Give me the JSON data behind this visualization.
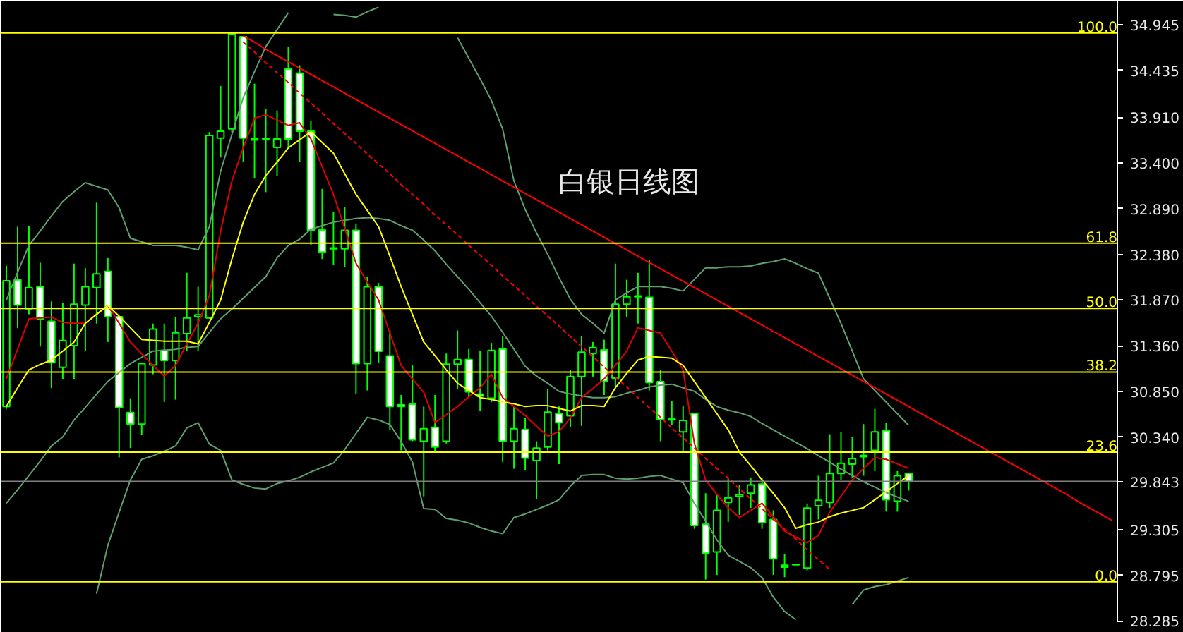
{
  "chart_data": {
    "type": "candlestick",
    "title": "白银日线图",
    "tick_labels": "y",
    "ohlc": [
      [
        30.68,
        32.251,
        30.654,
        32.086
      ],
      [
        32.096,
        32.689,
        31.556,
        31.813
      ],
      [
        31.772,
        32.699,
        31.71,
        32.009
      ],
      [
        32.019,
        32.287,
        31.35,
        31.659
      ],
      [
        31.633,
        31.854,
        30.886,
        31.169
      ],
      [
        31.118,
        31.834,
        30.989,
        31.417
      ],
      [
        31.36,
        32.277,
        30.989,
        31.823
      ],
      [
        31.813,
        32.225,
        31.298,
        32.019
      ],
      [
        32.009,
        32.957,
        31.607,
        32.163
      ],
      [
        32.189,
        32.339,
        31.401,
        31.684
      ],
      [
        31.684,
        31.684,
        30.113,
        30.67
      ],
      [
        30.613,
        30.773,
        30.216,
        30.484
      ],
      [
        30.484,
        31.159,
        30.361,
        31.159
      ],
      [
        31.144,
        31.607,
        31.041,
        31.545
      ],
      [
        31.308,
        31.607,
        30.731,
        31.195
      ],
      [
        31.195,
        31.684,
        30.757,
        31.504
      ],
      [
        31.494,
        32.174,
        31.298,
        31.669
      ],
      [
        31.684,
        32.019,
        31.298,
        31.705
      ],
      [
        31.669,
        33.745,
        31.659,
        33.709
      ],
      [
        33.678,
        34.26,
        33.462,
        33.755
      ],
      [
        33.781,
        34.842,
        33.745,
        34.842
      ],
      [
        34.811,
        34.811,
        33.41,
        33.678
      ],
      [
        33.668,
        34.286,
        33.23,
        33.657
      ],
      [
        33.672,
        34.002,
        33.075,
        33.668
      ],
      [
        33.575,
        33.987,
        33.255,
        33.668
      ],
      [
        34.45,
        34.698,
        33.575,
        33.668
      ],
      [
        34.404,
        34.492,
        33.41,
        33.755
      ],
      [
        33.755,
        33.874,
        32.483,
        32.648
      ],
      [
        32.653,
        33.111,
        32.328,
        32.406
      ],
      [
        32.452,
        32.854,
        32.267,
        32.442
      ],
      [
        32.442,
        32.905,
        32.236,
        32.648
      ],
      [
        32.648,
        32.725,
        30.824,
        31.159
      ],
      [
        31.159,
        32.133,
        30.86,
        32.019
      ],
      [
        32.019,
        32.06,
        31.169,
        31.298
      ],
      [
        31.246,
        31.53,
        30.422,
        30.68
      ],
      [
        30.7,
        30.809,
        30.19,
        30.68
      ],
      [
        30.706,
        31.144,
        30.293,
        30.309
      ],
      [
        30.293,
        30.68,
        29.676,
        30.433
      ],
      [
        30.448,
        30.809,
        30.175,
        30.227
      ],
      [
        30.293,
        31.272,
        30.268,
        31.154
      ],
      [
        31.154,
        31.53,
        30.875,
        31.205
      ],
      [
        31.205,
        31.324,
        30.793,
        30.845
      ],
      [
        30.819,
        31.298,
        30.628,
        30.798
      ],
      [
        30.773,
        31.391,
        30.731,
        31.308
      ],
      [
        31.324,
        31.463,
        30.062,
        30.293
      ],
      [
        30.293,
        30.69,
        29.985,
        30.433
      ],
      [
        30.422,
        30.551,
        29.969,
        30.103
      ],
      [
        30.077,
        30.293,
        29.65,
        30.216
      ],
      [
        30.227,
        30.876,
        30.19,
        30.618
      ],
      [
        30.603,
        30.68,
        30.036,
        30.5
      ],
      [
        30.577,
        31.092,
        30.448,
        31.015
      ],
      [
        31.015,
        31.463,
        30.464,
        31.288
      ],
      [
        31.272,
        31.401,
        31.015,
        31.339
      ],
      [
        31.314,
        31.427,
        30.809,
        30.963
      ],
      [
        30.999,
        32.277,
        30.886,
        31.823
      ],
      [
        31.823,
        32.096,
        31.684,
        31.906
      ],
      [
        31.906,
        32.174,
        31.607,
        31.916
      ],
      [
        31.901,
        32.318,
        30.86,
        30.948
      ],
      [
        30.958,
        31.092,
        30.293,
        30.536
      ],
      [
        30.541,
        30.742,
        30.474,
        30.531
      ],
      [
        30.397,
        30.69,
        30.165,
        30.526
      ],
      [
        30.603,
        30.603,
        29.315,
        29.351
      ],
      [
        29.366,
        29.712,
        28.748,
        29.042
      ],
      [
        29.057,
        29.691,
        28.8,
        29.521
      ],
      [
        29.609,
        29.882,
        29.392,
        29.66
      ],
      [
        29.676,
        29.804,
        29.469,
        29.696
      ],
      [
        29.712,
        29.882,
        29.547,
        29.804
      ],
      [
        29.814,
        29.882,
        29.315,
        29.382
      ],
      [
        29.418,
        29.521,
        28.8,
        28.98
      ],
      [
        28.887,
        29.032,
        28.774,
        28.908
      ],
      [
        28.913,
        28.923,
        28.913,
        28.918
      ],
      [
        28.877,
        29.598,
        28.851,
        29.547
      ],
      [
        29.572,
        29.907,
        29.418,
        29.634
      ],
      [
        29.609,
        30.371,
        29.547,
        29.933
      ],
      [
        29.933,
        30.397,
        29.856,
        30.046
      ],
      [
        30.036,
        30.345,
        29.882,
        30.098
      ],
      [
        30.119,
        30.484,
        29.907,
        30.134
      ],
      [
        30.191,
        30.654,
        29.959,
        30.397
      ],
      [
        30.412,
        30.5,
        29.506,
        29.64
      ],
      [
        29.624,
        29.959,
        29.506,
        29.907
      ],
      [
        29.933,
        29.933,
        29.742,
        29.843
      ],
      null,
      null,
      null,
      null,
      null,
      null,
      null,
      null,
      null,
      null,
      null,
      null,
      null,
      null,
      null,
      null,
      null,
      null
    ],
    "color": "#00ff00",
    "colors": [
      "#000000",
      "#ffffff",
      "#000000",
      "#ffffff",
      "#ffffff",
      "#000000",
      "#000000",
      "#000000",
      "#000000",
      "#ffffff",
      "#ffffff",
      "#ffffff",
      "#000000",
      "#000000",
      "#ffffff",
      "#000000",
      "#000000",
      "#000000",
      "#000000",
      "#000000",
      "#000000",
      "#ffffff",
      "#ffffff",
      "#ffffff",
      "#000000",
      "#ffffff",
      "#ffffff",
      "#ffffff",
      "#ffffff",
      "#ffffff",
      "#000000",
      "#ffffff",
      "#000000",
      "#ffffff",
      "#ffffff",
      "#ffffff",
      "#ffffff",
      "#000000",
      "#ffffff",
      "#000000",
      "#000000",
      "#ffffff",
      "#ffffff",
      "#000000",
      "#ffffff",
      "#000000",
      "#ffffff",
      "#000000",
      "#000000",
      "#ffffff",
      "#000000",
      "#000000",
      "#000000",
      "#ffffff",
      "#000000",
      "#000000",
      "#000000",
      "#ffffff",
      "#ffffff",
      "#ffffff",
      "#000000",
      "#ffffff",
      "#ffffff",
      "#000000",
      "#000000",
      "#000000",
      "#000000",
      "#ffffff",
      "#ffffff",
      "#000000",
      "#000000",
      "#000000",
      "#000000",
      "#000000",
      "#000000",
      "#000000",
      "#000000",
      "#000000",
      "#ffffff",
      "#000000",
      "#ffffff",
      null,
      null,
      null,
      null,
      null,
      null,
      null,
      null,
      null,
      null,
      null,
      null,
      null,
      null,
      null,
      null,
      null,
      null
    ],
    "categories": [
      null,
      null,
      null,
      null,
      null,
      null,
      null,
      null,
      null,
      null,
      null,
      null,
      null,
      null,
      null,
      null,
      null,
      null,
      null,
      null,
      null,
      null,
      null,
      null,
      null,
      null,
      null,
      null,
      null,
      null,
      null,
      null,
      null,
      null,
      null,
      null,
      null,
      null,
      null,
      null,
      null,
      null,
      null,
      null,
      null,
      null,
      null,
      null,
      null,
      null,
      null,
      null,
      null,
      null,
      null,
      null,
      null,
      null,
      null,
      null,
      null,
      null,
      null,
      null,
      null,
      null,
      null,
      null,
      null,
      null,
      null,
      null,
      null,
      null,
      null,
      null,
      null,
      null,
      null,
      null,
      null,
      null,
      null,
      null,
      null,
      null,
      null,
      null,
      null,
      null,
      null,
      null,
      null,
      null,
      null,
      null,
      null,
      null,
      null
    ],
    "series": [
      {
        "type": "line",
        "color": "#5f9f6f",
        "values": [
          31.87,
          32.18,
          32.48,
          32.64,
          32.81,
          32.97,
          33.08,
          33.18,
          33.14,
          33.1,
          32.9,
          32.56,
          32.52,
          32.48,
          32.48,
          32.48,
          32.46,
          32.43,
          32.69,
          33.31,
          33.72,
          34.13,
          34.42,
          34.7,
          34.89,
          35.08,
          null,
          null,
          null,
          35.06,
          35.05,
          35.03,
          35.09,
          35.14,
          null,
          null,
          null,
          null,
          null,
          null,
          34.8,
          34.57,
          34.34,
          34.1,
          33.78,
          33.2,
          32.88,
          32.62,
          32.38,
          32.12,
          31.88,
          31.71,
          31.61,
          31.5,
          31.87,
          31.95,
          32.02,
          32.02,
          32.02,
          32.0,
          31.97,
          32.1,
          32.23,
          32.23,
          32.24,
          32.24,
          32.25,
          32.28,
          32.3,
          32.33,
          32.28,
          32.22,
          32.17,
          31.89,
          31.61,
          31.3,
          30.99,
          30.86,
          30.73,
          30.6,
          30.47,
          null,
          null,
          null,
          null,
          null,
          null,
          null,
          null,
          null,
          null,
          null,
          null,
          null,
          null,
          null,
          null,
          null,
          null
        ]
      },
      {
        "type": "line",
        "color": "#5f9f6f",
        "values": [
          29.6,
          29.75,
          29.91,
          30.07,
          30.24,
          30.34,
          30.53,
          30.67,
          30.82,
          30.96,
          31.06,
          31.16,
          31.23,
          31.3,
          31.31,
          31.32,
          31.34,
          31.35,
          31.51,
          31.66,
          31.77,
          31.89,
          32.01,
          32.13,
          32.34,
          32.48,
          32.55,
          32.66,
          32.7,
          32.74,
          32.76,
          32.78,
          32.79,
          32.78,
          32.76,
          32.7,
          32.65,
          32.54,
          32.42,
          32.27,
          32.13,
          31.99,
          31.84,
          31.69,
          31.51,
          31.32,
          31.13,
          31.02,
          30.94,
          30.85,
          30.82,
          30.8,
          30.78,
          30.78,
          30.79,
          30.83,
          30.86,
          30.9,
          30.92,
          30.93,
          30.89,
          30.85,
          30.76,
          30.68,
          30.64,
          30.61,
          30.57,
          30.49,
          30.42,
          30.35,
          30.28,
          30.21,
          30.13,
          30.06,
          29.98,
          29.91,
          29.84,
          29.78,
          29.72,
          29.67,
          29.62,
          null,
          null,
          null,
          null,
          null,
          null,
          null,
          null,
          null,
          null,
          null,
          null,
          null,
          null,
          null,
          null,
          null,
          null
        ]
      },
      {
        "type": "line",
        "color": "#5f9f6f",
        "values": [
          null,
          null,
          null,
          null,
          null,
          null,
          null,
          null,
          28.59,
          29.13,
          29.5,
          29.86,
          30.09,
          30.13,
          30.18,
          30.24,
          30.44,
          30.5,
          30.26,
          30.19,
          29.86,
          29.81,
          29.77,
          29.76,
          29.82,
          29.85,
          29.89,
          29.95,
          30.0,
          30.05,
          30.2,
          30.38,
          30.56,
          30.53,
          30.48,
          30.29,
          30.06,
          29.54,
          29.53,
          29.43,
          29.41,
          29.38,
          29.33,
          29.29,
          29.26,
          29.44,
          29.48,
          29.53,
          29.58,
          29.64,
          29.79,
          29.91,
          29.92,
          29.92,
          29.88,
          29.87,
          29.88,
          29.9,
          29.91,
          29.87,
          29.83,
          29.6,
          29.4,
          29.19,
          29.02,
          28.95,
          28.88,
          28.77,
          28.55,
          28.39,
          28.3,
          null,
          null,
          null,
          null,
          28.47,
          28.63,
          28.67,
          28.69,
          28.73,
          28.77,
          null,
          null,
          null,
          null,
          null,
          null,
          null,
          null,
          null,
          null,
          null,
          null,
          null,
          null,
          null,
          null,
          null,
          null
        ]
      },
      {
        "type": "line",
        "color": "#e00000",
        "values": [
          30.99,
          31.32,
          31.66,
          31.67,
          31.68,
          31.62,
          31.61,
          31.61,
          31.71,
          31.81,
          31.61,
          31.4,
          31.27,
          31.14,
          31.02,
          31.14,
          31.38,
          31.61,
          31.92,
          32.64,
          33.2,
          33.57,
          33.9,
          33.94,
          33.88,
          33.82,
          33.85,
          33.67,
          33.36,
          33.05,
          32.67,
          32.28,
          32.07,
          31.87,
          31.5,
          31.14,
          30.99,
          30.84,
          30.5,
          30.59,
          30.68,
          30.79,
          30.89,
          31.04,
          30.78,
          30.68,
          30.58,
          30.46,
          30.35,
          30.4,
          30.55,
          30.78,
          30.88,
          30.99,
          31.14,
          31.3,
          31.56,
          31.53,
          31.5,
          31.3,
          31.09,
          30.27,
          29.86,
          29.7,
          29.55,
          29.44,
          29.52,
          29.6,
          29.45,
          29.29,
          29.22,
          29.16,
          29.24,
          29.5,
          29.68,
          29.86,
          29.99,
          30.11,
          30.09,
          30.04,
          29.99,
          null,
          null,
          null,
          null,
          null,
          null,
          null,
          null,
          null,
          null,
          null,
          null,
          null,
          null,
          null,
          null,
          null,
          null
        ]
      },
      {
        "type": "line",
        "color": "#ffff00",
        "values": [
          30.68,
          30.89,
          31.09,
          31.15,
          31.2,
          31.3,
          31.4,
          31.61,
          31.71,
          31.81,
          31.69,
          31.56,
          31.43,
          31.42,
          31.41,
          31.41,
          31.41,
          31.38,
          31.62,
          31.87,
          32.33,
          32.74,
          33.05,
          33.26,
          33.41,
          33.57,
          33.66,
          33.75,
          33.63,
          33.51,
          33.28,
          33.05,
          32.87,
          32.69,
          32.36,
          32.02,
          31.71,
          31.4,
          31.25,
          31.09,
          30.94,
          30.86,
          30.78,
          30.76,
          30.73,
          30.71,
          30.68,
          30.69,
          30.69,
          30.66,
          30.63,
          30.69,
          30.69,
          30.68,
          30.89,
          31.05,
          31.2,
          31.24,
          31.23,
          31.22,
          31.14,
          30.96,
          30.78,
          30.6,
          30.42,
          30.17,
          30.02,
          29.86,
          29.71,
          29.55,
          29.32,
          29.36,
          29.39,
          29.45,
          29.49,
          29.52,
          29.55,
          29.64,
          29.73,
          29.82,
          29.91,
          null,
          null,
          null,
          null,
          null,
          null,
          null,
          null,
          null,
          null,
          null,
          null,
          null,
          null,
          null,
          null,
          null,
          null
        ]
      },
      {
        "type": "line",
        "color": "#ff0000",
        "values": [
          null,
          null,
          null,
          null,
          null,
          null,
          null,
          null,
          null,
          null,
          null,
          null,
          null,
          null,
          null,
          null,
          null,
          null,
          null,
          null,
          null,
          34.82,
          34.75,
          34.67,
          34.6,
          34.53,
          34.46,
          34.39,
          34.32,
          34.25,
          34.18,
          34.11,
          34.04,
          33.97,
          33.9,
          33.83,
          33.76,
          33.69,
          33.62,
          33.55,
          33.48,
          33.41,
          33.34,
          33.27,
          33.2,
          33.13,
          33.06,
          32.99,
          32.92,
          32.85,
          32.78,
          32.71,
          32.64,
          32.57,
          32.5,
          32.43,
          32.36,
          32.29,
          32.22,
          32.15,
          32.08,
          32.01,
          31.94,
          31.87,
          31.8,
          31.73,
          31.66,
          31.59,
          31.52,
          31.45,
          31.38,
          31.31,
          31.24,
          31.17,
          31.1,
          31.03,
          30.96,
          30.89,
          30.82,
          30.75,
          30.68,
          30.61,
          30.54,
          30.47,
          30.4,
          30.33,
          30.26,
          30.19,
          30.12,
          30.05,
          29.98,
          29.91,
          29.84,
          29.77,
          29.7,
          29.62,
          29.55,
          29.48,
          29.41
        ]
      },
      {
        "type": "line",
        "color": "#ff0000",
        "line_style": "dashed",
        "values": [
          null,
          null,
          null,
          null,
          null,
          null,
          null,
          null,
          null,
          null,
          null,
          null,
          null,
          null,
          null,
          null,
          null,
          null,
          null,
          null,
          null,
          34.75,
          34.64,
          34.52,
          34.41,
          34.3,
          34.18,
          34.07,
          33.96,
          33.84,
          33.73,
          33.62,
          33.5,
          33.39,
          33.28,
          33.16,
          33.05,
          32.94,
          32.82,
          32.71,
          32.6,
          32.48,
          32.37,
          32.26,
          32.14,
          32.03,
          31.92,
          31.8,
          31.69,
          31.58,
          31.46,
          31.35,
          31.24,
          31.12,
          31.01,
          30.9,
          30.78,
          30.67,
          30.56,
          30.44,
          30.33,
          30.22,
          30.1,
          29.99,
          29.88,
          29.76,
          29.65,
          29.54,
          29.42,
          29.31,
          29.2,
          29.08,
          28.97,
          28.86,
          null,
          null,
          null,
          null,
          null,
          null,
          null,
          null,
          null,
          null,
          null,
          null,
          null,
          null,
          null,
          null,
          null,
          null,
          null,
          null,
          null,
          null,
          null,
          null,
          null
        ]
      }
    ],
    "ylim": [
      28.28,
      35.213
    ],
    "yticks": [
      34.945,
      34.435,
      {
        "value": 33.91,
        "label": "33.910"
      },
      {
        "value": 33.4,
        "label": "33.400"
      },
      {
        "value": 32.89,
        "label": "32.890"
      },
      {
        "value": 32.38,
        "label": "32.380"
      },
      {
        "value": 31.87,
        "label": "31.870"
      },
      {
        "value": 31.36,
        "label": "31.360"
      },
      {
        "value": 30.85,
        "label": "30.850"
      },
      {
        "value": 30.34,
        "label": "30.340"
      },
      29.843,
      29.305,
      28.795,
      28.285
    ],
    "annotations": [
      {
        "text": "100.0",
        "y": 34.852
      },
      {
        "text": "61.8",
        "y": 32.504
      },
      {
        "text": "50.0",
        "y": 31.777
      },
      {
        "text": "38.2",
        "y": 31.066
      },
      {
        "text": "23.6",
        "y": 30.17
      },
      {
        "text": "0.0",
        "y": 28.723
      }
    ],
    "ref_lines": [
      {
        "axis": "y",
        "value": 34.852,
        "color": "#ffff00"
      },
      {
        "axis": "y",
        "value": 32.504,
        "color": "#ffff00"
      },
      {
        "axis": "y",
        "value": 31.777,
        "color": "#ffff00"
      },
      {
        "axis": "y",
        "value": 31.066,
        "color": "#ffff00"
      },
      {
        "axis": "y",
        "value": 30.17,
        "color": "#ffff00"
      },
      {
        "axis": "y",
        "value": 28.723,
        "color": "#ffff00"
      },
      {
        "axis": "y",
        "value": 29.843,
        "color": "#808080"
      }
    ]
  }
}
